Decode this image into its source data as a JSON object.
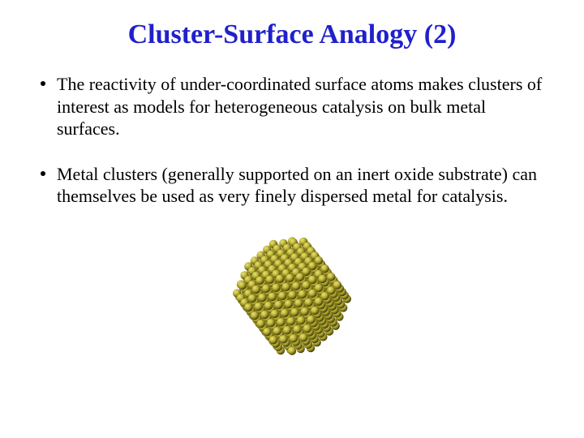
{
  "title": {
    "text": "Cluster-Surface Analogy (2)",
    "color": "#2020cc",
    "fontSize": 34
  },
  "bullets": {
    "fontSize": 22,
    "color": "#000000",
    "items": [
      "The reactivity of under-coordinated surface atoms makes clusters of interest as models for heterogeneous catalysis on bulk metal surfaces.",
      "Metal clusters (generally supported on an inert oxide substrate) can themselves be used as very finely dispersed metal for catalysis."
    ]
  },
  "cluster": {
    "size": 170,
    "radius": 72,
    "atomRadius": 5.2,
    "step": 9,
    "colors": {
      "light": "#e8e07a",
      "mid": "#c0b638",
      "dark": "#6a6414",
      "shadow": "#3a3608"
    }
  }
}
